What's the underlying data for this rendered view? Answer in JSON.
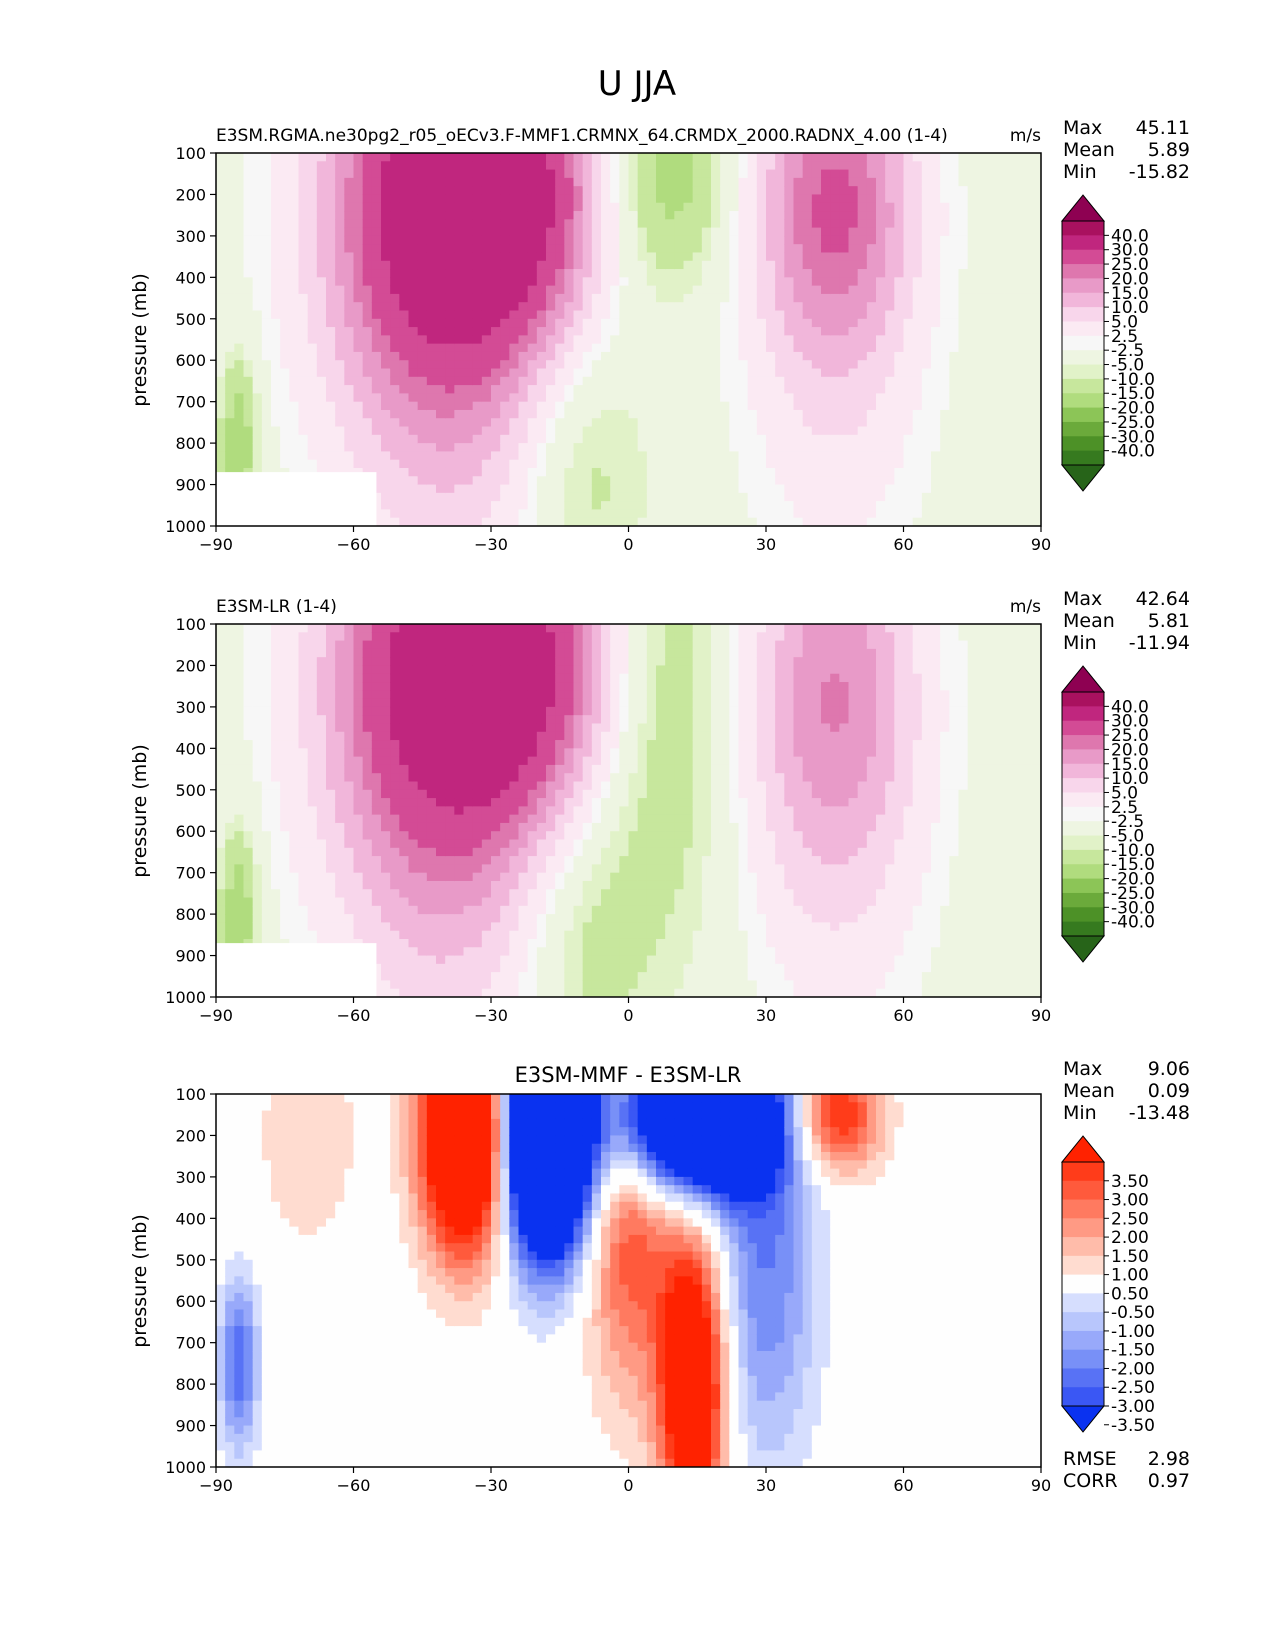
{
  "figure_title": "U JJA",
  "panels": [
    {
      "title_left": "E3SM.RGMA.ne30pg2_r05_oECv3.F-MMF1.CRMNX_64.CRMDX_2000.RADNX_4.00 (1-4)",
      "title_center": "",
      "units": "m/s",
      "stats": [
        {
          "label": "Max",
          "value": "45.11"
        },
        {
          "label": "Mean",
          "value": "5.89"
        },
        {
          "label": "Min",
          "value": "-15.82"
        }
      ],
      "colorbar": {
        "scheme": "pink-green",
        "labels": [
          "40.0",
          "30.0",
          "25.0",
          "20.0",
          "15.0",
          "10.0",
          "5.0",
          "2.5",
          "-2.5",
          "-5.0",
          "-10.0",
          "-15.0",
          "-20.0",
          "-25.0",
          "-30.0",
          "-40.0"
        ],
        "colors": [
          "#8e0152",
          "#a9115f",
          "#c0267e",
          "#d34b95",
          "#de77ae",
          "#e89ac8",
          "#f1b6da",
          "#f8d6eb",
          "#fbeaf3",
          "#f7f7f7",
          "#eef5e2",
          "#e1f2c8",
          "#c7e79d",
          "#b0dc7e",
          "#8cc557",
          "#6baa3b",
          "#4d9127",
          "#367a1f",
          "#276419"
        ]
      }
    },
    {
      "title_left": "E3SM-LR (1-4)",
      "title_center": "",
      "units": "m/s",
      "stats": [
        {
          "label": "Max",
          "value": "42.64"
        },
        {
          "label": "Mean",
          "value": "5.81"
        },
        {
          "label": "Min",
          "value": "-11.94"
        }
      ],
      "colorbar": {
        "scheme": "pink-green",
        "labels": [
          "40.0",
          "30.0",
          "25.0",
          "20.0",
          "15.0",
          "10.0",
          "5.0",
          "2.5",
          "-2.5",
          "-5.0",
          "-10.0",
          "-15.0",
          "-20.0",
          "-25.0",
          "-30.0",
          "-40.0"
        ],
        "colors": [
          "#8e0152",
          "#a9115f",
          "#c0267e",
          "#d34b95",
          "#de77ae",
          "#e89ac8",
          "#f1b6da",
          "#f8d6eb",
          "#fbeaf3",
          "#f7f7f7",
          "#eef5e2",
          "#e1f2c8",
          "#c7e79d",
          "#b0dc7e",
          "#8cc557",
          "#6baa3b",
          "#4d9127",
          "#367a1f",
          "#276419"
        ]
      }
    },
    {
      "title_left": "",
      "title_center": "E3SM-MMF - E3SM-LR",
      "units": "",
      "stats": [
        {
          "label": "Max",
          "value": "9.06"
        },
        {
          "label": "Mean",
          "value": "0.09"
        },
        {
          "label": "Min",
          "value": "-13.48"
        }
      ],
      "colorbar": {
        "scheme": "red-blue",
        "labels": [
          "3.50",
          "3.00",
          "2.50",
          "2.00",
          "1.50",
          "1.00",
          "0.50",
          "-0.50",
          "-1.00",
          "-1.50",
          "-2.00",
          "-2.50",
          "-3.00",
          "-3.50"
        ],
        "colors": [
          "#ff2200",
          "#ff3c1a",
          "#ff5a3c",
          "#ff7a60",
          "#ff9a84",
          "#ffbcaa",
          "#ffdcd0",
          "#fefefe",
          "#d6defe",
          "#b8c6fc",
          "#98a9fa",
          "#7890f7",
          "#5872f5",
          "#3a57f4",
          "#0a32f0"
        ]
      },
      "extra_stats": [
        {
          "label": "RMSE",
          "value": "2.98"
        },
        {
          "label": "CORR",
          "value": "0.97"
        }
      ]
    }
  ],
  "chart_data": {
    "type": "heatmap",
    "title": "U JJA",
    "xlabel": "",
    "ylabel": "pressure (mb)",
    "xlim": [
      -90,
      90
    ],
    "ylim": [
      1000,
      100
    ],
    "xticks": [
      "−90",
      "−60",
      "−30",
      "0",
      "30",
      "60",
      "90"
    ],
    "yticks": [
      "100",
      "200",
      "300",
      "400",
      "500",
      "600",
      "700",
      "800",
      "900",
      "1000"
    ],
    "panels": [
      {
        "name": "E3SM-MMF",
        "units": "m/s",
        "max": 45.11,
        "mean": 5.89,
        "min": -15.82,
        "features": [
          {
            "lat": -30,
            "p": 200,
            "value": 45.0,
            "wlat": 16,
            "wp": 250
          },
          {
            "lat": -45,
            "p": 250,
            "value": 25.0,
            "wlat": 18,
            "wp": 400
          },
          {
            "lat": -38,
            "p": 650,
            "value": 10.0,
            "wlat": 16,
            "wp": 450
          },
          {
            "lat": 45,
            "p": 200,
            "value": 25.0,
            "wlat": 12,
            "wp": 250
          },
          {
            "lat": 45,
            "p": 550,
            "value": 10.0,
            "wlat": 14,
            "wp": 400
          },
          {
            "lat": 8,
            "p": 150,
            "value": -15.0,
            "wlat": 10,
            "wp": 200
          },
          {
            "lat": -10,
            "p": 850,
            "value": -8.0,
            "wlat": 10,
            "wp": 250
          },
          {
            "lat": -85,
            "p": 800,
            "value": -15.0,
            "wlat": 3,
            "wp": 150
          }
        ]
      },
      {
        "name": "E3SM-LR",
        "units": "m/s",
        "max": 42.64,
        "mean": 5.81,
        "min": -11.94,
        "features": [
          {
            "lat": -28,
            "p": 200,
            "value": 42.0,
            "wlat": 16,
            "wp": 250
          },
          {
            "lat": -45,
            "p": 250,
            "value": 25.0,
            "wlat": 18,
            "wp": 400
          },
          {
            "lat": -38,
            "p": 650,
            "value": 10.0,
            "wlat": 16,
            "wp": 450
          },
          {
            "lat": 45,
            "p": 220,
            "value": 18.0,
            "wlat": 13,
            "wp": 300
          },
          {
            "lat": 45,
            "p": 550,
            "value": 10.0,
            "wlat": 14,
            "wp": 400
          },
          {
            "lat": 8,
            "p": 300,
            "value": -10.0,
            "wlat": 10,
            "wp": 400
          },
          {
            "lat": -10,
            "p": 850,
            "value": -8.0,
            "wlat": 10,
            "wp": 250
          },
          {
            "lat": -85,
            "p": 800,
            "value": -15.0,
            "wlat": 3,
            "wp": 150
          }
        ]
      },
      {
        "name": "E3SM-MMF - E3SM-LR",
        "units": "m/s",
        "max": 9.06,
        "mean": 0.09,
        "min": -13.48,
        "rmse": 2.98,
        "corr": 0.97,
        "features": [
          {
            "lat": -35,
            "p": 200,
            "value": 8.0,
            "wlat": 7,
            "wp": 200
          },
          {
            "lat": -18,
            "p": 200,
            "value": -12.0,
            "wlat": 7,
            "wp": 200
          },
          {
            "lat": 15,
            "p": 160,
            "value": -10.0,
            "wlat": 12,
            "wp": 120
          },
          {
            "lat": 14,
            "p": 800,
            "value": 6.0,
            "wlat": 5,
            "wp": 250
          },
          {
            "lat": 0,
            "p": 400,
            "value": 3.0,
            "wlat": 7,
            "wp": 300
          },
          {
            "lat": 45,
            "p": 150,
            "value": 4.0,
            "wlat": 7,
            "wp": 100
          },
          {
            "lat": 30,
            "p": 500,
            "value": -2.5,
            "wlat": 8,
            "wp": 350
          },
          {
            "lat": -85,
            "p": 750,
            "value": -3.0,
            "wlat": 3,
            "wp": 150
          },
          {
            "lat": -70,
            "p": 200,
            "value": 1.0,
            "wlat": 8,
            "wp": 200
          }
        ]
      }
    ]
  }
}
